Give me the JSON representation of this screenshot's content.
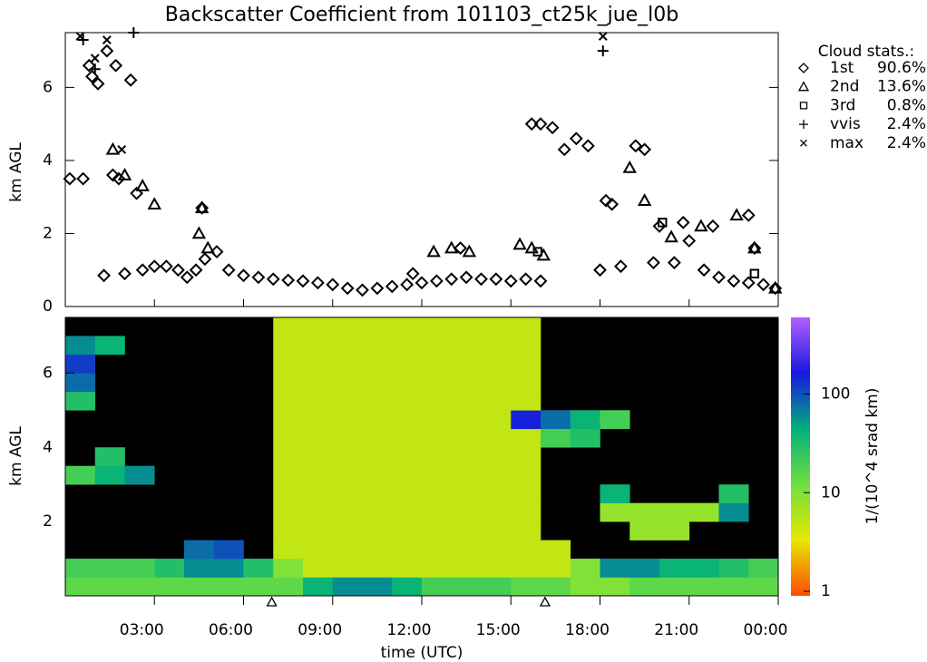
{
  "title": "Backscatter Coefficient from 101103_ct25k_jue_l0b",
  "chart_data": [
    {
      "type": "scatter",
      "ylabel": "km AGL",
      "xlim": [
        0,
        24
      ],
      "ylim": [
        0,
        7.5
      ],
      "yticks": [
        0,
        2,
        4,
        6
      ],
      "legend_title": "Cloud stats.:",
      "legend": "upper right",
      "series": [
        {
          "name": "1st",
          "marker": "diamond",
          "value": 90.6,
          "value_label": "90.6%",
          "x": [
            0.15,
            0.6,
            0.8,
            0.9,
            1.1,
            1.4,
            1.7,
            1.3,
            1.6,
            1.8,
            2.0,
            2.2,
            2.4,
            2.6,
            3.0,
            3.4,
            3.8,
            4.1,
            4.4,
            4.7,
            5.1,
            5.5,
            6.0,
            6.5,
            7.0,
            7.5,
            8.0,
            8.5,
            9.0,
            9.5,
            10.0,
            10.5,
            11.0,
            11.5,
            12.0,
            12.5,
            13.0,
            13.5,
            14.0,
            14.5,
            15.0,
            15.5,
            16.0,
            15.7,
            16.0,
            16.4,
            16.8,
            17.2,
            17.6,
            18.0,
            18.2,
            18.4,
            18.7,
            19.2,
            19.5,
            19.8,
            20.0,
            20.5,
            20.8,
            21.0,
            21.5,
            21.8,
            22.0,
            22.5,
            23.0,
            23.5,
            23.9,
            23.0,
            23.2,
            4.6,
            13.3,
            11.7
          ],
          "y": [
            3.5,
            3.5,
            6.6,
            6.3,
            6.1,
            7.0,
            6.6,
            0.85,
            3.6,
            3.5,
            0.9,
            6.2,
            3.1,
            1.0,
            1.1,
            1.1,
            1.0,
            0.8,
            1.0,
            1.3,
            1.5,
            1.0,
            0.85,
            0.8,
            0.75,
            0.72,
            0.7,
            0.65,
            0.6,
            0.5,
            0.45,
            0.5,
            0.55,
            0.6,
            0.65,
            0.7,
            0.75,
            0.8,
            0.75,
            0.75,
            0.7,
            0.75,
            0.7,
            5.0,
            5.0,
            4.9,
            4.3,
            4.6,
            4.4,
            1.0,
            2.9,
            2.8,
            1.1,
            4.4,
            4.3,
            1.2,
            2.2,
            1.2,
            2.3,
            1.8,
            1.0,
            2.2,
            0.8,
            0.7,
            0.65,
            0.6,
            0.5,
            2.5,
            1.6,
            2.7,
            1.6,
            0.9
          ]
        },
        {
          "name": "2nd",
          "marker": "triangle",
          "value": 13.6,
          "value_label": "13.6%",
          "x": [
            1.6,
            2.0,
            2.6,
            3.0,
            4.6,
            4.5,
            4.8,
            13.0,
            13.6,
            15.3,
            15.7,
            16.1,
            19.0,
            19.5,
            20.4,
            21.4,
            22.6,
            23.2,
            23.9,
            12.4
          ],
          "y": [
            4.3,
            3.6,
            3.3,
            2.8,
            2.7,
            2.0,
            1.6,
            1.6,
            1.5,
            1.7,
            1.6,
            1.4,
            3.8,
            2.9,
            1.9,
            2.2,
            2.5,
            1.6,
            0.5,
            1.5
          ]
        },
        {
          "name": "3rd",
          "marker": "square",
          "value": 0.8,
          "value_label": "0.8%",
          "x": [
            23.2,
            15.9,
            20.1
          ],
          "y": [
            0.9,
            1.5,
            2.3
          ]
        },
        {
          "name": "vvis",
          "marker": "plus",
          "value": 2.4,
          "value_label": "2.4%",
          "x": [
            0.6,
            2.3,
            18.1,
            1.0
          ],
          "y": [
            7.3,
            7.5,
            7.0,
            6.5
          ]
        },
        {
          "name": "max",
          "marker": "cross",
          "value": 2.4,
          "value_label": "2.4%",
          "x": [
            0.5,
            1.4,
            1.9,
            18.1,
            1.0
          ],
          "y": [
            7.4,
            7.3,
            4.3,
            7.4,
            6.8
          ]
        }
      ]
    },
    {
      "type": "heatmap",
      "ylabel": "km AGL",
      "xlabel": "time (UTC)",
      "xlim": [
        0,
        24
      ],
      "ylim": [
        0,
        7.5
      ],
      "yticks": [
        2,
        4,
        6
      ],
      "xticks": [
        {
          "value": 3,
          "label": "03:00"
        },
        {
          "value": 6,
          "label": "06:00"
        },
        {
          "value": 9,
          "label": "09:00"
        },
        {
          "value": 12,
          "label": "12:00"
        },
        {
          "value": 15,
          "label": "15:00"
        },
        {
          "value": 18,
          "label": "18:00"
        },
        {
          "value": 21,
          "label": "21:00"
        },
        {
          "value": 24,
          "label": "00:00"
        }
      ],
      "clabel": "1/(10^4 srad km)",
      "clim": [
        0.9,
        600
      ],
      "cticks": [
        1,
        10,
        100
      ],
      "log_color": true,
      "colormap": [
        "#ff4a00",
        "#e8e800",
        "#70e040",
        "#00b07a",
        "#1818e0",
        "#b060ff"
      ],
      "axis_markers": [
        6.95,
        16.15
      ],
      "xbins": [
        0,
        1,
        2,
        3,
        4,
        5,
        6,
        7,
        8,
        9,
        10,
        11,
        12,
        13,
        14,
        15,
        16,
        17,
        18,
        19,
        20,
        21,
        22,
        23,
        24
      ],
      "ybins": [
        0,
        0.5,
        1,
        1.5,
        2,
        2.5,
        3,
        3.5,
        4,
        4.5,
        5,
        5.5,
        6,
        6.5,
        7,
        7.5
      ],
      "values": [
        [
          15,
          15,
          15,
          15,
          15,
          15,
          15,
          15,
          40,
          60,
          60,
          40,
          20,
          20,
          20,
          15,
          15,
          10,
          10,
          15,
          15,
          15,
          15,
          15
        ],
        [
          20,
          20,
          20,
          30,
          60,
          60,
          30,
          10,
          5,
          5,
          5,
          5,
          5,
          5,
          5,
          5,
          5,
          10,
          60,
          60,
          40,
          40,
          30,
          20
        ],
        [
          null,
          null,
          null,
          null,
          80,
          100,
          null,
          5,
          5,
          5,
          5,
          5,
          5,
          5,
          5,
          5,
          5,
          null,
          null,
          null,
          null,
          null,
          null,
          null
        ],
        [
          null,
          null,
          null,
          null,
          null,
          null,
          null,
          5,
          5,
          5,
          5,
          5,
          5,
          5,
          5,
          5,
          null,
          null,
          null,
          8,
          8,
          null,
          null,
          null
        ],
        [
          null,
          null,
          null,
          null,
          null,
          null,
          null,
          5,
          5,
          5,
          5,
          5,
          5,
          5,
          5,
          5,
          null,
          null,
          8,
          8,
          8,
          8,
          60,
          null
        ],
        [
          null,
          null,
          null,
          null,
          null,
          null,
          null,
          5,
          5,
          5,
          5,
          5,
          5,
          5,
          5,
          5,
          null,
          null,
          40,
          null,
          null,
          null,
          30,
          null
        ],
        [
          20,
          40,
          60,
          null,
          null,
          null,
          null,
          5,
          5,
          5,
          5,
          5,
          5,
          5,
          5,
          5,
          null,
          null,
          null,
          null,
          null,
          null,
          null,
          null
        ],
        [
          null,
          30,
          null,
          null,
          null,
          null,
          null,
          5,
          5,
          5,
          5,
          5,
          5,
          5,
          5,
          5,
          null,
          null,
          null,
          null,
          null,
          null,
          null,
          null
        ],
        [
          null,
          null,
          null,
          null,
          null,
          null,
          null,
          5,
          5,
          5,
          5,
          5,
          5,
          5,
          5,
          5,
          20,
          30,
          null,
          null,
          null,
          null,
          null,
          null
        ],
        [
          null,
          null,
          null,
          null,
          null,
          null,
          null,
          5,
          5,
          5,
          5,
          5,
          5,
          5,
          5,
          150,
          80,
          40,
          20,
          null,
          null,
          null,
          null,
          null
        ],
        [
          30,
          null,
          null,
          null,
          null,
          null,
          null,
          5,
          5,
          5,
          5,
          5,
          5,
          5,
          5,
          5,
          null,
          null,
          null,
          null,
          null,
          null,
          null,
          null
        ],
        [
          80,
          null,
          null,
          null,
          null,
          null,
          null,
          5,
          5,
          5,
          5,
          5,
          5,
          5,
          5,
          5,
          null,
          null,
          null,
          null,
          null,
          null,
          null,
          null
        ],
        [
          120,
          null,
          null,
          null,
          null,
          null,
          null,
          5,
          5,
          5,
          5,
          5,
          5,
          5,
          5,
          5,
          null,
          null,
          null,
          null,
          null,
          null,
          null,
          null
        ],
        [
          60,
          40,
          null,
          null,
          null,
          null,
          null,
          5,
          5,
          5,
          5,
          5,
          5,
          5,
          5,
          5,
          null,
          null,
          null,
          null,
          null,
          null,
          null,
          null
        ],
        [
          null,
          null,
          null,
          null,
          null,
          null,
          null,
          5,
          5,
          5,
          5,
          5,
          5,
          5,
          5,
          5,
          null,
          null,
          null,
          null,
          null,
          null,
          null,
          null
        ]
      ]
    }
  ]
}
